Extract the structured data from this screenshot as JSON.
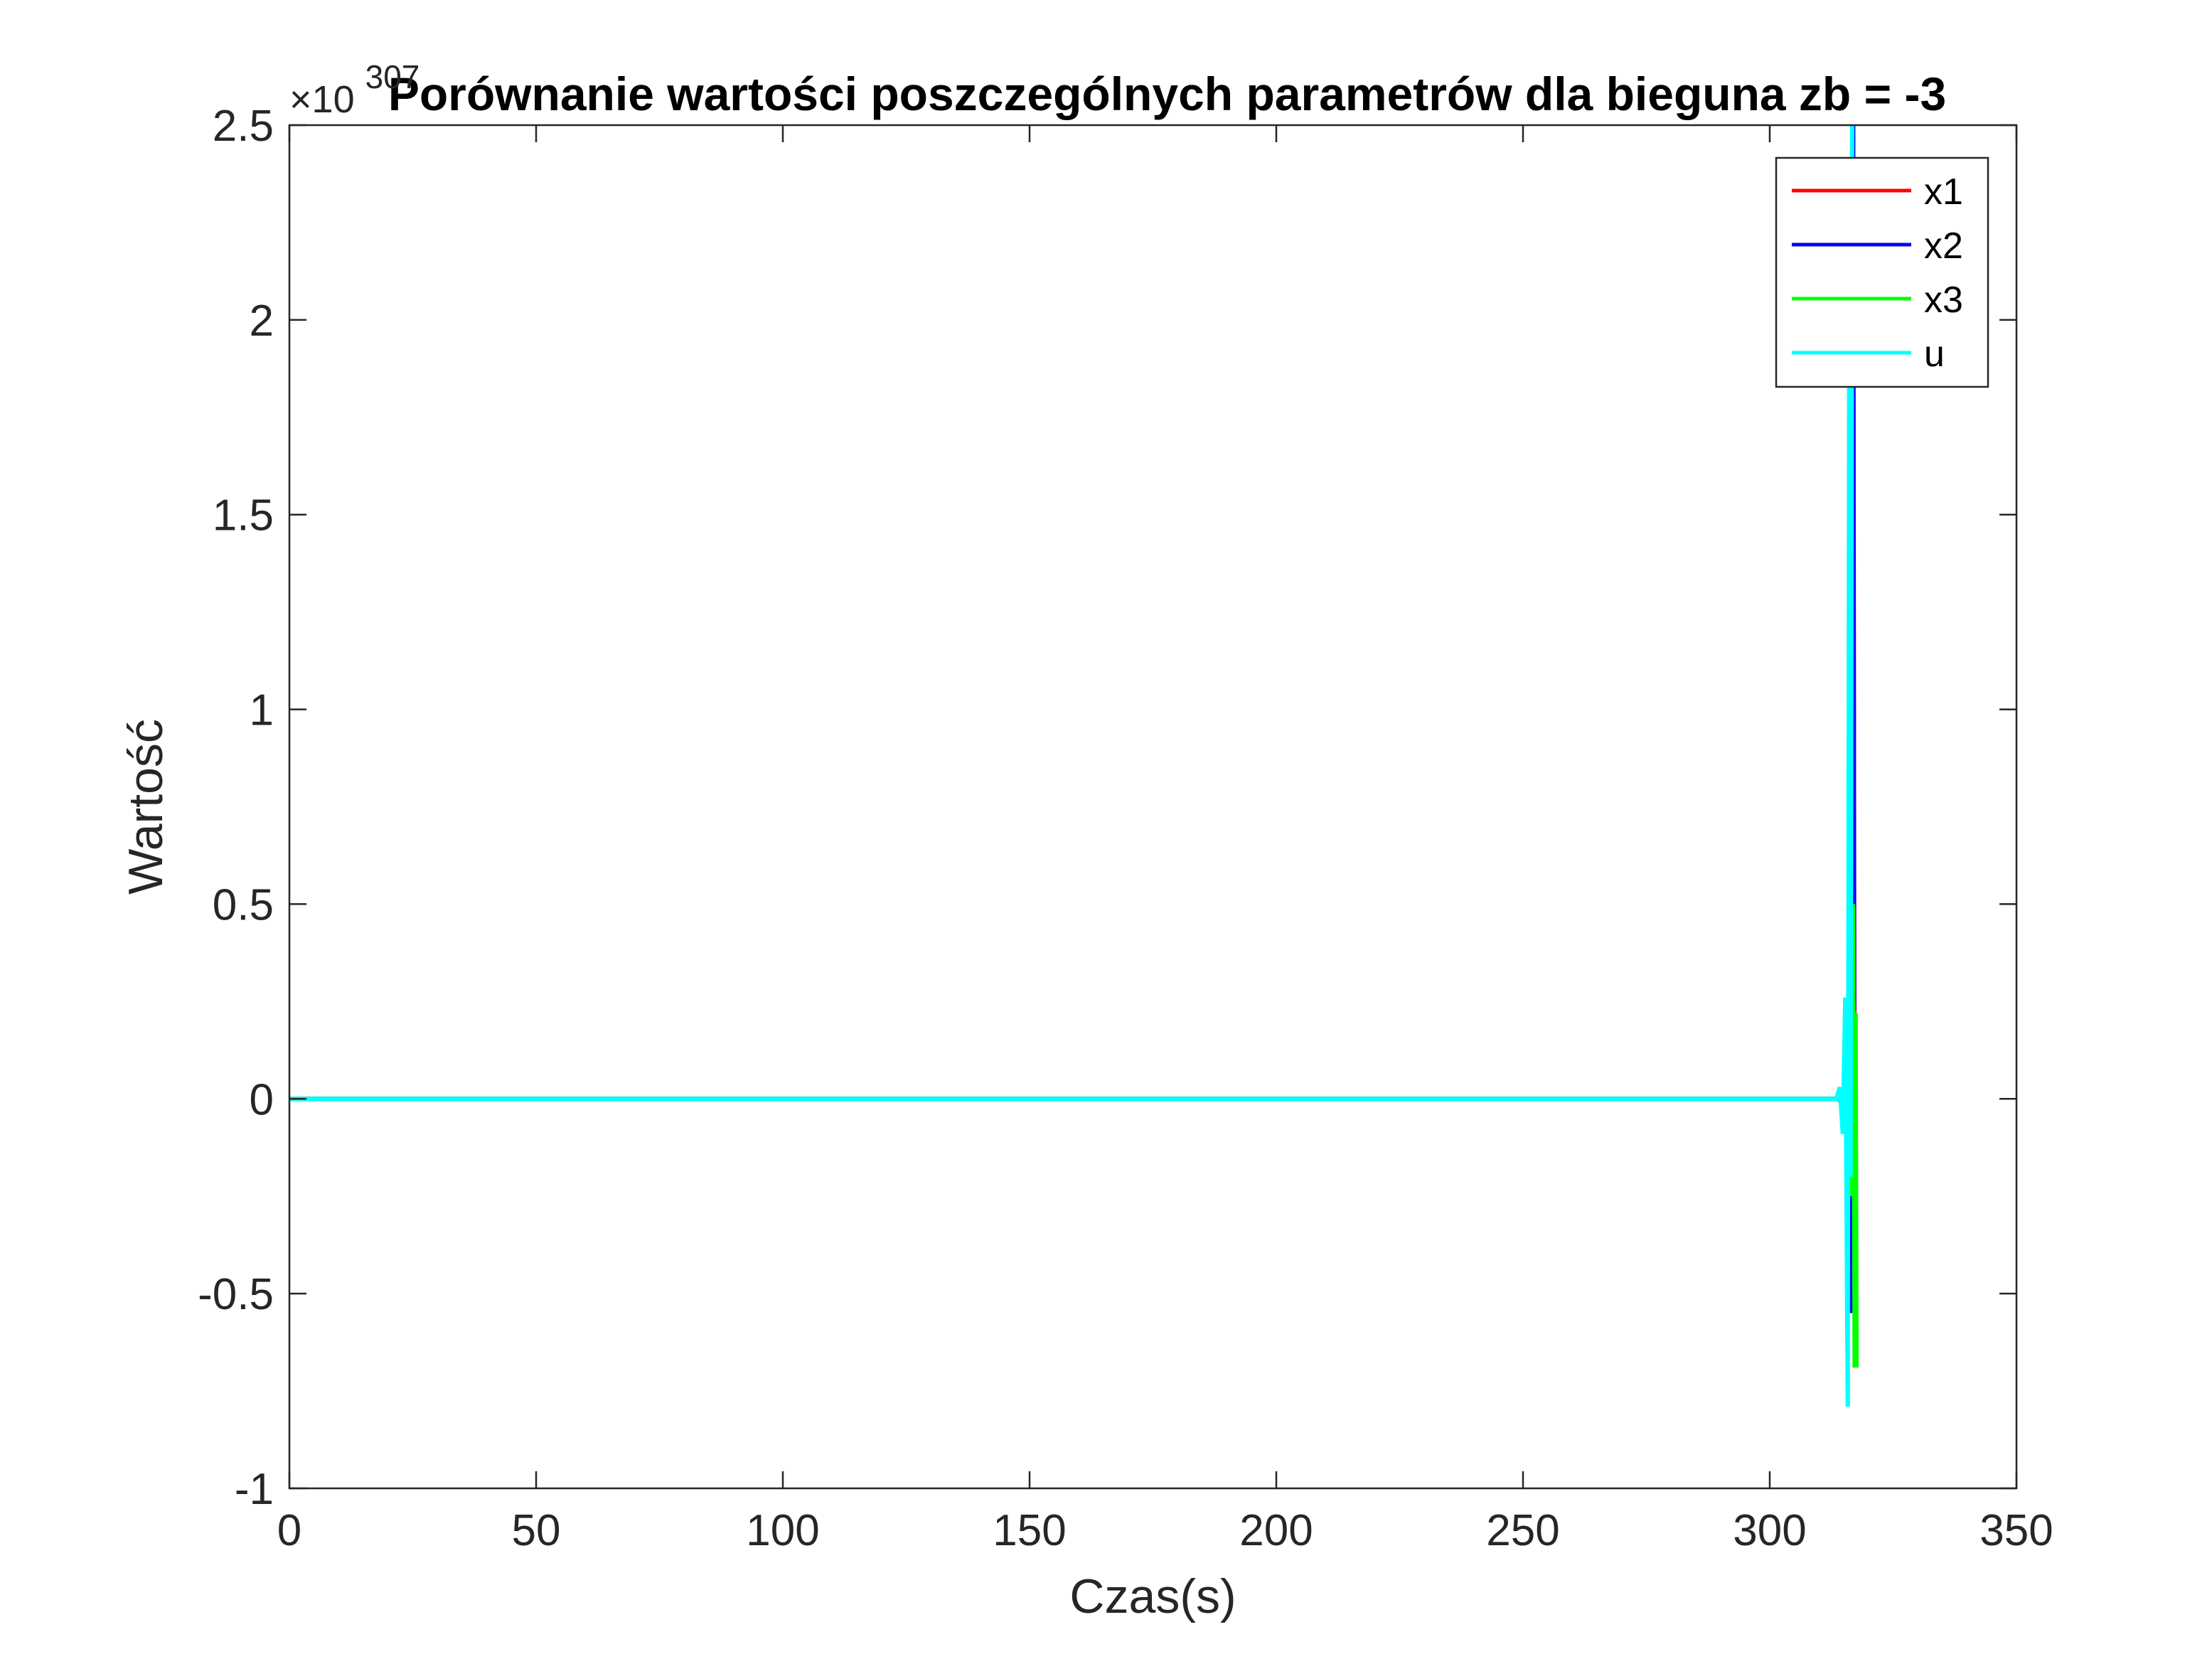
{
  "chart_data": {
    "type": "line",
    "title": "Porównanie wartości poszczególnych parametrów dla bieguna zb = -3",
    "xlabel": "Czas(s)",
    "ylabel": "Wartość",
    "y_exponent_label": "×10",
    "y_exponent_power": "307",
    "xlim": [
      0,
      350
    ],
    "ylim": [
      -1,
      2.5
    ],
    "xticks": [
      0,
      50,
      100,
      150,
      200,
      250,
      300,
      350
    ],
    "xtick_labels": [
      "0",
      "50",
      "100",
      "150",
      "200",
      "250",
      "300",
      "350"
    ],
    "yticks": [
      -1,
      -0.5,
      0,
      0.5,
      1,
      1.5,
      2,
      2.5
    ],
    "ytick_labels": [
      "-1",
      "-0.5",
      "0",
      "0.5",
      "1",
      "1.5",
      "2",
      "2.5"
    ],
    "grid": false,
    "legend_position": "top-right",
    "series": [
      {
        "name": "x1",
        "color": "#ff0000",
        "x": [
          0,
          314.0,
          314.5,
          315.2,
          315.8,
          316.3,
          316.6,
          316.9,
          317.1,
          317.3
        ],
        "y": [
          0,
          0,
          0.01,
          -0.04,
          0.12,
          -0.3,
          0.9,
          2.5,
          0.5,
          -0.6
        ]
      },
      {
        "name": "x2",
        "color": "#0000ff",
        "x": [
          0,
          314.0,
          314.5,
          315.2,
          315.8,
          316.3,
          316.6,
          316.9,
          317.1
        ],
        "y": [
          0,
          0,
          -0.01,
          0.03,
          -0.1,
          0.28,
          -0.55,
          2.5,
          0.23
        ]
      },
      {
        "name": "x3",
        "color": "#00ff00",
        "x": [
          0,
          314.0,
          314.6,
          315.3,
          315.9,
          316.5,
          316.9,
          317.2,
          317.4,
          317.6
        ],
        "y": [
          0,
          0,
          0.01,
          -0.03,
          0.1,
          -0.25,
          0.5,
          -0.69,
          0.22,
          -0.69
        ]
      },
      {
        "name": "u",
        "color": "#00ffff",
        "x": [
          0,
          313.5,
          314.2,
          314.8,
          315.3,
          315.8,
          316.1,
          316.4,
          316.7
        ],
        "y": [
          0,
          0,
          0.03,
          -0.09,
          0.26,
          -0.79,
          1.9,
          -0.2,
          2.5
        ]
      }
    ]
  }
}
